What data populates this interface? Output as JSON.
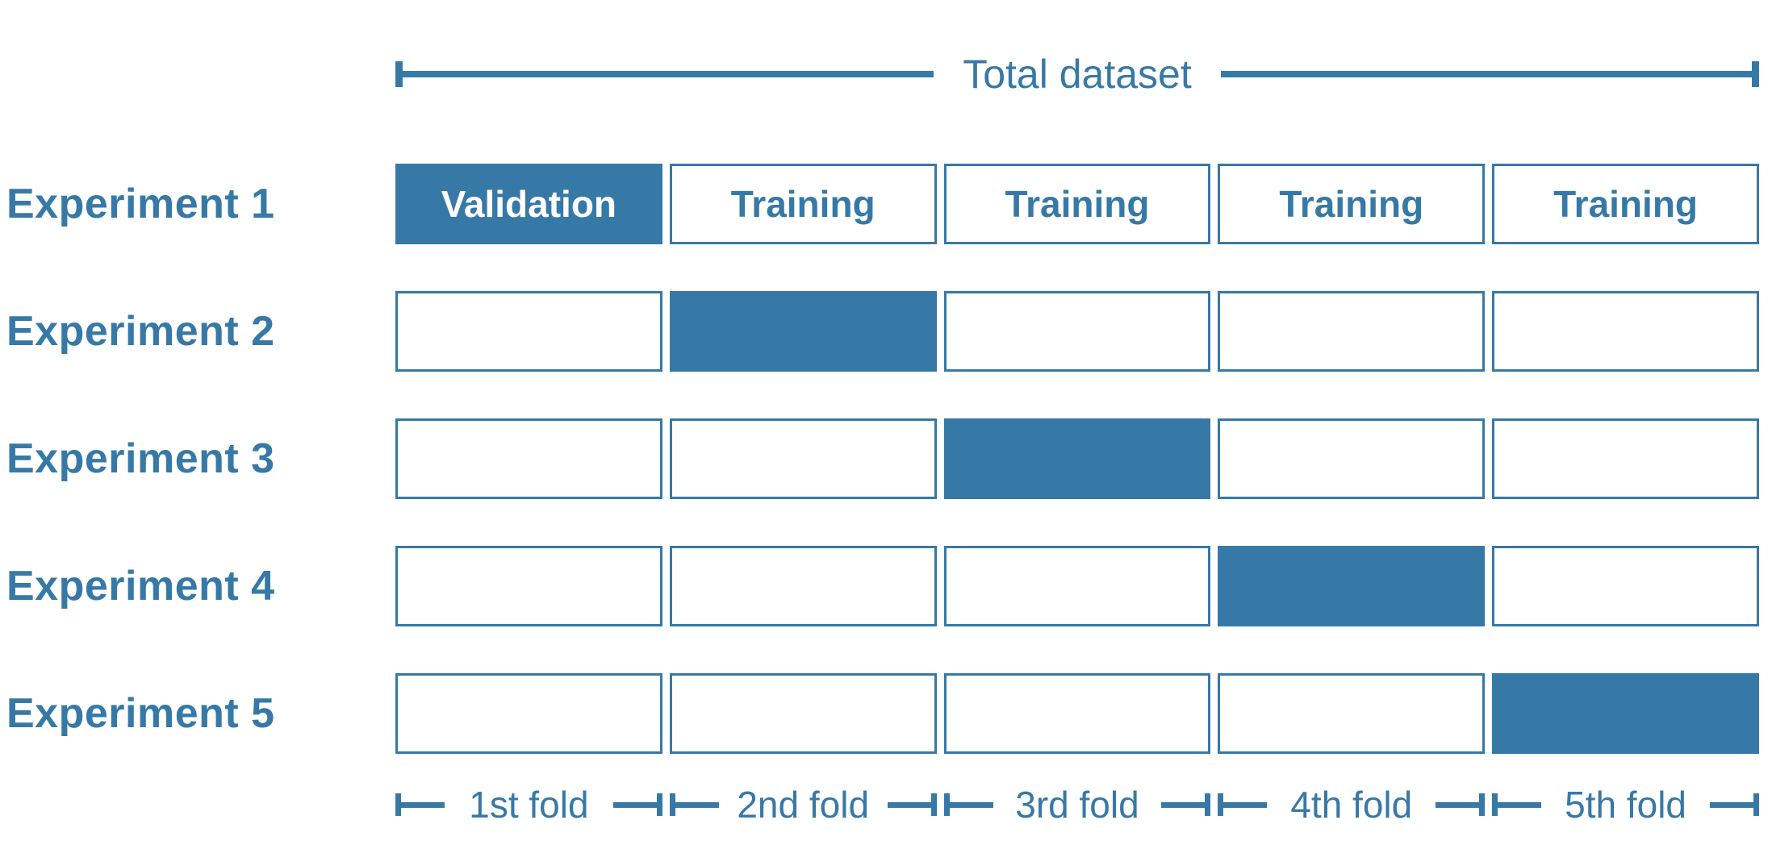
{
  "colors": {
    "accent_blue": "#3779A6",
    "filled_text": "#FFFFFF",
    "background": "#FFFFFF"
  },
  "total_dataset": {
    "label": "Total dataset"
  },
  "experiments": [
    {
      "label": "Experiment 1",
      "cells": [
        {
          "variant": "filled",
          "label": "Validation"
        },
        {
          "variant": "outline",
          "label": "Training"
        },
        {
          "variant": "outline",
          "label": "Training"
        },
        {
          "variant": "outline",
          "label": "Training"
        },
        {
          "variant": "outline",
          "label": "Training"
        }
      ]
    },
    {
      "label": "Experiment 2",
      "cells": [
        {
          "variant": "outline",
          "label": ""
        },
        {
          "variant": "filled",
          "label": ""
        },
        {
          "variant": "outline",
          "label": ""
        },
        {
          "variant": "outline",
          "label": ""
        },
        {
          "variant": "outline",
          "label": ""
        }
      ]
    },
    {
      "label": "Experiment 3",
      "cells": [
        {
          "variant": "outline",
          "label": ""
        },
        {
          "variant": "outline",
          "label": ""
        },
        {
          "variant": "filled",
          "label": ""
        },
        {
          "variant": "outline",
          "label": ""
        },
        {
          "variant": "outline",
          "label": ""
        }
      ]
    },
    {
      "label": "Experiment 4",
      "cells": [
        {
          "variant": "outline",
          "label": ""
        },
        {
          "variant": "outline",
          "label": ""
        },
        {
          "variant": "outline",
          "label": ""
        },
        {
          "variant": "filled",
          "label": ""
        },
        {
          "variant": "outline",
          "label": ""
        }
      ]
    },
    {
      "label": "Experiment 5",
      "cells": [
        {
          "variant": "outline",
          "label": ""
        },
        {
          "variant": "outline",
          "label": ""
        },
        {
          "variant": "outline",
          "label": ""
        },
        {
          "variant": "outline",
          "label": ""
        },
        {
          "variant": "filled",
          "label": ""
        }
      ]
    }
  ],
  "folds": [
    {
      "label": "1st fold"
    },
    {
      "label": "2nd fold"
    },
    {
      "label": "3rd fold"
    },
    {
      "label": "4th fold"
    },
    {
      "label": "5th fold"
    }
  ]
}
